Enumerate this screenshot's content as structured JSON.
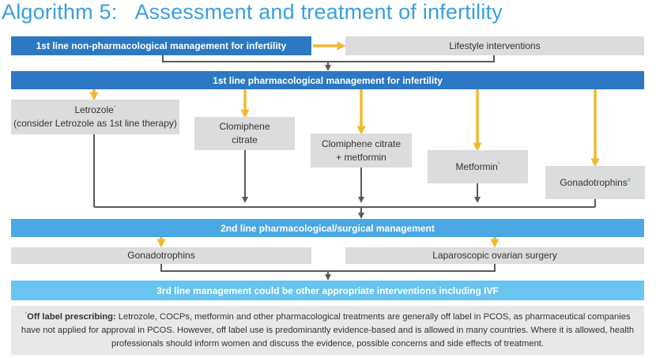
{
  "title": {
    "number": "Algorithm 5:",
    "text": "Assessment and treatment of infertility"
  },
  "first_line_nonpharm": {
    "label": "1st line non-pharmacological management for infertility"
  },
  "lifestyle": {
    "label": "Lifestyle interventions"
  },
  "first_line_pharm": {
    "label": "1st line pharmacological management for infertility"
  },
  "options": {
    "letrozole": {
      "line1": "Letrozole",
      "marker": "*",
      "line2": "(consider Letrozole as 1st line therapy)"
    },
    "clomiphene": {
      "line1": "Clomiphene",
      "line2": "citrate"
    },
    "clomiphene_metformin": {
      "line1": "Clomiphene citrate",
      "line2": "+ metformin"
    },
    "metformin": {
      "line1": "Metformin",
      "marker": "*"
    },
    "gonadotrophins": {
      "line1": "Gonadotrophins",
      "marker": "#"
    }
  },
  "second_line": {
    "label": "2nd line pharmacological/surgical management"
  },
  "second_options": {
    "gonadotrophins": "Gonadotrophins",
    "laparoscopic": "Laparoscopic ovarian surgery"
  },
  "third_line": {
    "label": "3rd line management could be other appropriate interventions including IVF"
  },
  "footnote": {
    "marker": "*",
    "bold": "Off label prescribing:",
    "text": " Letrozole, COCPs, metformin and other pharmacological treatments are generally off label in PCOS, as pharmaceutical companies have not applied for approval in PCOS. However, off label use is predominantly evidence-based and is allowed in many countries. Where it is allowed, health professionals should inform women and discuss the evidence, possible concerns and side effects of treatment."
  },
  "colors": {
    "title": "#3a9fdc",
    "dark_band": "#2c78c3",
    "mid_band": "#4ba8e3",
    "light_band": "#69c4ef",
    "box": "#dcdcdc",
    "arrow_yellow": "#f2b830",
    "arrow_grey": "#5a5a5a"
  }
}
